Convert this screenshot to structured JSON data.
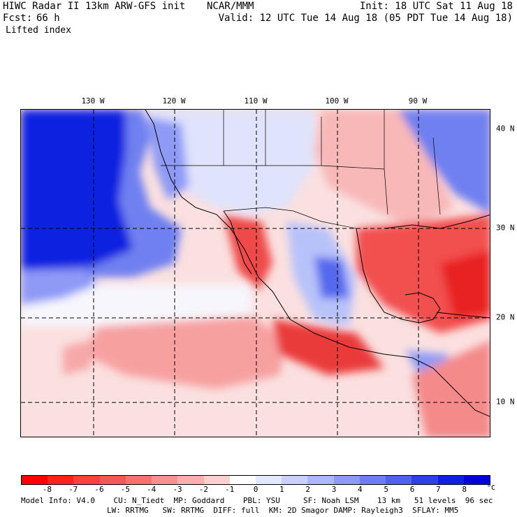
{
  "header": {
    "title_left": "HIWC Radar II 13km ARW-GFS init",
    "title_mid": "NCAR/MMM",
    "init": "Init: 18 UTC Sat 11 Aug 18",
    "fcst_label": "Fcst:",
    "fcst_value": "66 h",
    "valid": "Valid: 12 UTC Tue 14 Aug 18 (05 PDT Tue 14 Aug 18)",
    "field": "Lifted index"
  },
  "lon_labels": [
    "130 W",
    "120 W",
    "110 W",
    "100 W",
    "90 W"
  ],
  "lat_labels": [
    "40 N",
    "30 N",
    "20 N",
    "10 N"
  ],
  "colorbar": {
    "ticks": [
      "-8",
      "-7",
      "-6",
      "-5",
      "-4",
      "-3",
      "-2",
      "-1",
      "0",
      "1",
      "2",
      "3",
      "4",
      "5",
      "6",
      "7",
      "8"
    ],
    "unit": "°C",
    "colors": [
      "#ff0000",
      "#ff2020",
      "#ff4040",
      "#f85555",
      "#f87070",
      "#fa9090",
      "#fbb0b0",
      "#fdd0d0",
      "#ffffff",
      "#e4e8fd",
      "#c8d0fb",
      "#acb6f9",
      "#8e9af6",
      "#6f7ef3",
      "#5060ee",
      "#3040e8",
      "#1020e0",
      "#0000d8"
    ]
  },
  "footer": {
    "line1": "Model Info: V4.0    CU: N_Tiedt  MP: Goddard    PBL: YSU     SF: Noah LSM    13 km   51 levels  96 sec",
    "line2": "LW: RRTMG   SW: RRTMG  DIFF: full  KM: 2D Smagor DAMP: Rayleigh3  SFLAY: MM5"
  }
}
